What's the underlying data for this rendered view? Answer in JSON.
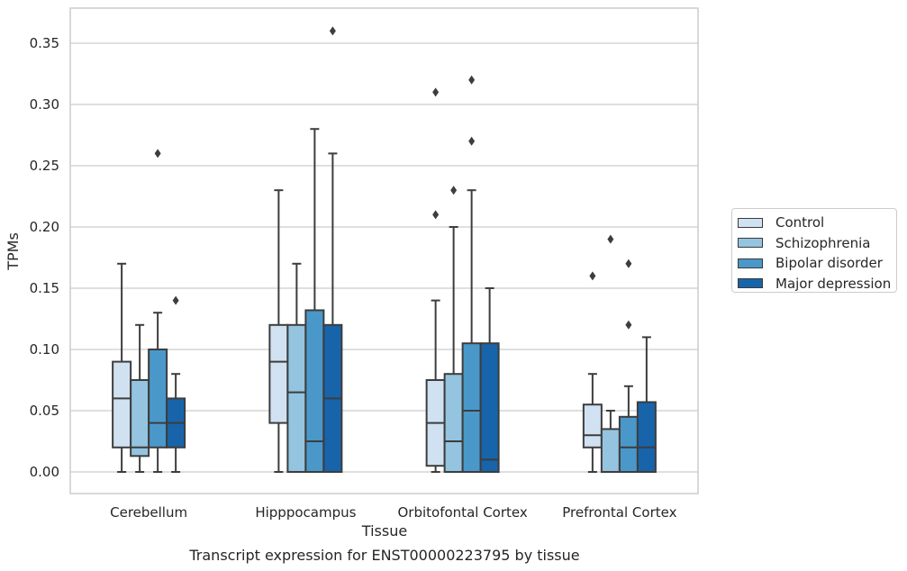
{
  "chart_data": {
    "type": "box",
    "title": "Transcript expression for ENST00000223795 by tissue",
    "xlabel": "Tissue",
    "ylabel": "TPMs",
    "ylim": [
      -0.017,
      0.38
    ],
    "yticks": [
      "0.00",
      "0.05",
      "0.10",
      "0.15",
      "0.20",
      "0.25",
      "0.30",
      "0.35"
    ],
    "categories": [
      "Cerebellum",
      "Hipppocampus",
      "Orbitofontal Cortex",
      "Prefrontal Cortex"
    ],
    "grid": "horizontal",
    "legend_position": "right",
    "series": [
      {
        "name": "Control",
        "color": "#d0e1f2",
        "boxes": [
          {
            "whisker_low": 0.0,
            "q1": 0.02,
            "median": 0.06,
            "q3": 0.09,
            "whisker_high": 0.17,
            "outliers": []
          },
          {
            "whisker_low": 0.0,
            "q1": 0.04,
            "median": 0.09,
            "q3": 0.12,
            "whisker_high": 0.23,
            "outliers": []
          },
          {
            "whisker_low": 0.0,
            "q1": 0.005,
            "median": 0.04,
            "q3": 0.075,
            "whisker_high": 0.14,
            "outliers": [
              0.21,
              0.31
            ]
          },
          {
            "whisker_low": 0.0,
            "q1": 0.02,
            "median": 0.03,
            "q3": 0.055,
            "whisker_high": 0.08,
            "outliers": [
              0.16
            ]
          }
        ]
      },
      {
        "name": "Schizophrenia",
        "color": "#94c4df",
        "boxes": [
          {
            "whisker_low": 0.0,
            "q1": 0.013,
            "median": 0.02,
            "q3": 0.075,
            "whisker_high": 0.12,
            "outliers": []
          },
          {
            "whisker_low": 0.0,
            "q1": 0.0,
            "median": 0.065,
            "q3": 0.12,
            "whisker_high": 0.17,
            "outliers": []
          },
          {
            "whisker_low": 0.0,
            "q1": 0.0,
            "median": 0.025,
            "q3": 0.08,
            "whisker_high": 0.2,
            "outliers": [
              0.23
            ]
          },
          {
            "whisker_low": 0.0,
            "q1": 0.0,
            "median": 0.0,
            "q3": 0.035,
            "whisker_high": 0.05,
            "outliers": [
              0.19
            ]
          }
        ]
      },
      {
        "name": "Bipolar disorder",
        "color": "#4a98c9",
        "boxes": [
          {
            "whisker_low": 0.0,
            "q1": 0.02,
            "median": 0.04,
            "q3": 0.1,
            "whisker_high": 0.13,
            "outliers": [
              0.26
            ]
          },
          {
            "whisker_low": 0.0,
            "q1": 0.0,
            "median": 0.025,
            "q3": 0.132,
            "whisker_high": 0.28,
            "outliers": []
          },
          {
            "whisker_low": 0.0,
            "q1": 0.0,
            "median": 0.05,
            "q3": 0.105,
            "whisker_high": 0.23,
            "outliers": [
              0.27,
              0.32
            ]
          },
          {
            "whisker_low": 0.0,
            "q1": 0.0,
            "median": 0.02,
            "q3": 0.045,
            "whisker_high": 0.07,
            "outliers": [
              0.12,
              0.17
            ]
          }
        ]
      },
      {
        "name": "Major depression",
        "color": "#1764ab",
        "boxes": [
          {
            "whisker_low": 0.0,
            "q1": 0.02,
            "median": 0.04,
            "q3": 0.06,
            "whisker_high": 0.08,
            "outliers": [
              0.14
            ]
          },
          {
            "whisker_low": 0.0,
            "q1": 0.0,
            "median": 0.06,
            "q3": 0.12,
            "whisker_high": 0.26,
            "outliers": [
              0.36
            ]
          },
          {
            "whisker_low": 0.0,
            "q1": 0.0,
            "median": 0.01,
            "q3": 0.105,
            "whisker_high": 0.15,
            "outliers": []
          },
          {
            "whisker_low": 0.0,
            "q1": 0.0,
            "median": 0.02,
            "q3": 0.057,
            "whisker_high": 0.11,
            "outliers": []
          }
        ]
      }
    ]
  }
}
